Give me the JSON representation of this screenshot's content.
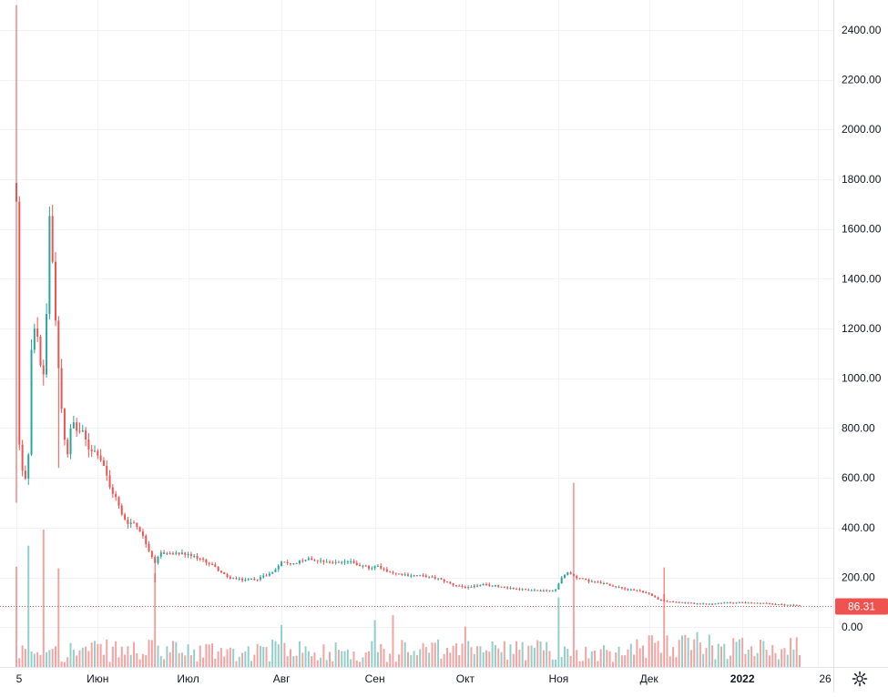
{
  "chart_data": {
    "type": "candlestick",
    "y_axis": {
      "ticks": [
        "2400.00",
        "2200.00",
        "2000.00",
        "1800.00",
        "1600.00",
        "1400.00",
        "1200.00",
        "1000.00",
        "800.00",
        "600.00",
        "400.00",
        "200.00",
        "0.00"
      ],
      "ylim": [
        -160,
        2520
      ]
    },
    "x_axis": {
      "ticks": [
        {
          "label": "5",
          "bold": false
        },
        {
          "label": "Июн",
          "bold": false
        },
        {
          "label": "Июл",
          "bold": false
        },
        {
          "label": "Авг",
          "bold": false
        },
        {
          "label": "Сен",
          "bold": false
        },
        {
          "label": "Окт",
          "bold": false
        },
        {
          "label": "Ноя",
          "bold": false
        },
        {
          "label": "Дек",
          "bold": false
        },
        {
          "label": "2022",
          "bold": true
        },
        {
          "label": "26",
          "bold": false
        }
      ],
      "tick_day_index": [
        0,
        27,
        57,
        88,
        119,
        149,
        180,
        210,
        241,
        266
      ],
      "day_count": 266
    },
    "price_anchors": [
      [
        0,
        1700
      ],
      [
        1,
        720
      ],
      [
        2,
        620
      ],
      [
        3,
        600
      ],
      [
        4,
        700
      ],
      [
        5,
        1100
      ],
      [
        6,
        1190
      ],
      [
        7,
        1150
      ],
      [
        8,
        1040
      ],
      [
        9,
        1020
      ],
      [
        10,
        1260
      ],
      [
        11,
        1630
      ],
      [
        12,
        1450
      ],
      [
        13,
        1250
      ],
      [
        14,
        1050
      ],
      [
        15,
        880
      ],
      [
        16,
        760
      ],
      [
        17,
        700
      ],
      [
        18,
        790
      ],
      [
        19,
        820
      ],
      [
        20,
        790
      ],
      [
        22,
        780
      ],
      [
        24,
        720
      ],
      [
        27,
        700
      ],
      [
        29,
        650
      ],
      [
        31,
        560
      ],
      [
        33,
        520
      ],
      [
        35,
        450
      ],
      [
        37,
        420
      ],
      [
        39,
        420
      ],
      [
        41,
        390
      ],
      [
        44,
        310
      ],
      [
        46,
        260
      ],
      [
        48,
        300
      ],
      [
        51,
        295
      ],
      [
        55,
        295
      ],
      [
        60,
        280
      ],
      [
        65,
        250
      ],
      [
        70,
        200
      ],
      [
        75,
        190
      ],
      [
        80,
        195
      ],
      [
        85,
        220
      ],
      [
        88,
        260
      ],
      [
        92,
        255
      ],
      [
        96,
        275
      ],
      [
        100,
        270
      ],
      [
        105,
        260
      ],
      [
        110,
        265
      ],
      [
        115,
        245
      ],
      [
        118,
        235
      ],
      [
        120,
        250
      ],
      [
        122,
        230
      ],
      [
        126,
        215
      ],
      [
        130,
        210
      ],
      [
        135,
        205
      ],
      [
        140,
        195
      ],
      [
        145,
        170
      ],
      [
        149,
        160
      ],
      [
        155,
        170
      ],
      [
        160,
        165
      ],
      [
        165,
        155
      ],
      [
        170,
        150
      ],
      [
        175,
        145
      ],
      [
        179,
        150
      ],
      [
        181,
        200
      ],
      [
        183,
        220
      ],
      [
        186,
        200
      ],
      [
        190,
        185
      ],
      [
        195,
        175
      ],
      [
        200,
        160
      ],
      [
        205,
        150
      ],
      [
        210,
        135
      ],
      [
        213,
        110
      ],
      [
        216,
        105
      ],
      [
        220,
        100
      ],
      [
        225,
        95
      ],
      [
        230,
        92
      ],
      [
        235,
        98
      ],
      [
        240,
        100
      ],
      [
        245,
        96
      ],
      [
        250,
        95
      ],
      [
        255,
        90
      ],
      [
        260,
        86.31
      ]
    ],
    "spikes": [
      {
        "day": 0,
        "high": 2500,
        "low": 500
      },
      {
        "day": 11,
        "high": 1690
      },
      {
        "day": 14,
        "low": 640
      },
      {
        "day": 46,
        "low": 180
      },
      {
        "day": 185,
        "high": 580
      },
      {
        "day": 215,
        "high": 240
      }
    ],
    "volume_spikes": [
      {
        "day": 0,
        "value": 310
      },
      {
        "day": 4,
        "value": 375
      },
      {
        "day": 9,
        "value": 425
      },
      {
        "day": 14,
        "value": 305
      },
      {
        "day": 46,
        "value": 290
      },
      {
        "day": 88,
        "value": 130
      },
      {
        "day": 119,
        "value": 145
      },
      {
        "day": 125,
        "value": 160
      },
      {
        "day": 149,
        "value": 125
      },
      {
        "day": 180,
        "value": 215
      },
      {
        "day": 185,
        "value": 275
      },
      {
        "day": 215,
        "value": 225
      }
    ],
    "volume_scale_max": 450,
    "last_price": {
      "label": "86.31",
      "value": 86.31
    },
    "colors": {
      "up": "#26a69a",
      "down": "#ef5350",
      "volume_up": "#93cfc9",
      "volume_down": "#f3a3a1",
      "grid": "#f0f3fa",
      "text": "#131722",
      "last_price": "#ef5350",
      "background": "#ffffff"
    },
    "grid": true
  },
  "toolbar": {
    "settings_icon": "gear-icon"
  }
}
